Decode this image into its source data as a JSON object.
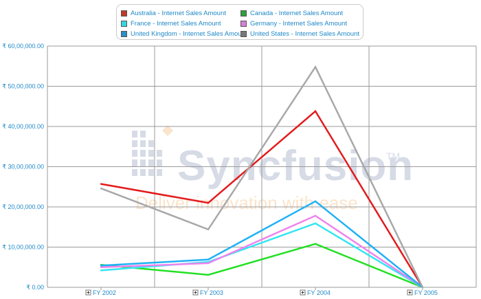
{
  "chart_data": {
    "type": "line",
    "categories": [
      "FY 2002",
      "FY 2003",
      "FY 2004",
      "FY 2005"
    ],
    "ylim": [
      0,
      60000000
    ],
    "yticks": [
      {
        "value": 0,
        "label": "₹ 0.00"
      },
      {
        "value": 10000000,
        "label": "₹ 10,00,000.00"
      },
      {
        "value": 20000000,
        "label": "₹ 20,00,000.00"
      },
      {
        "value": 30000000,
        "label": "₹ 30,00,000.00"
      },
      {
        "value": 40000000,
        "label": "₹ 40,00,000.00"
      },
      {
        "value": 50000000,
        "label": "₹ 50,00,000.00"
      },
      {
        "value": 60000000,
        "label": "₹ 60,00,000.00"
      }
    ],
    "grid": true,
    "legend_position": "top",
    "series": [
      {
        "name": "Australia - Internet Sales Amount",
        "color": "#e31a1c",
        "values": [
          25700000,
          21000000,
          43800000,
          0
        ]
      },
      {
        "name": "Canada - Internet Sales Amount",
        "color": "#22e022",
        "values": [
          5600000,
          3100000,
          10800000,
          0
        ]
      },
      {
        "name": "France - Internet Sales Amount",
        "color": "#33e5f2",
        "values": [
          4200000,
          6300000,
          15900000,
          0
        ]
      },
      {
        "name": "Germany - Internet Sales Amount",
        "color": "#ee82ee",
        "values": [
          5000000,
          6000000,
          17800000,
          0
        ]
      },
      {
        "name": "United Kingdom - Internet Sales Amount",
        "color": "#1fb1f5",
        "values": [
          5400000,
          6900000,
          21400000,
          0
        ]
      },
      {
        "name": "United States - Internet Sales Amount",
        "color": "#a8a8a8",
        "values": [
          24600000,
          14400000,
          54800000,
          0
        ]
      }
    ]
  },
  "watermark": {
    "brand": "Syncfusion",
    "trademark": "TM",
    "tagline": "Deliver innovation with ease"
  },
  "colors": {
    "axis_label": "#1e88c7",
    "grid": "#9a9a9a"
  }
}
